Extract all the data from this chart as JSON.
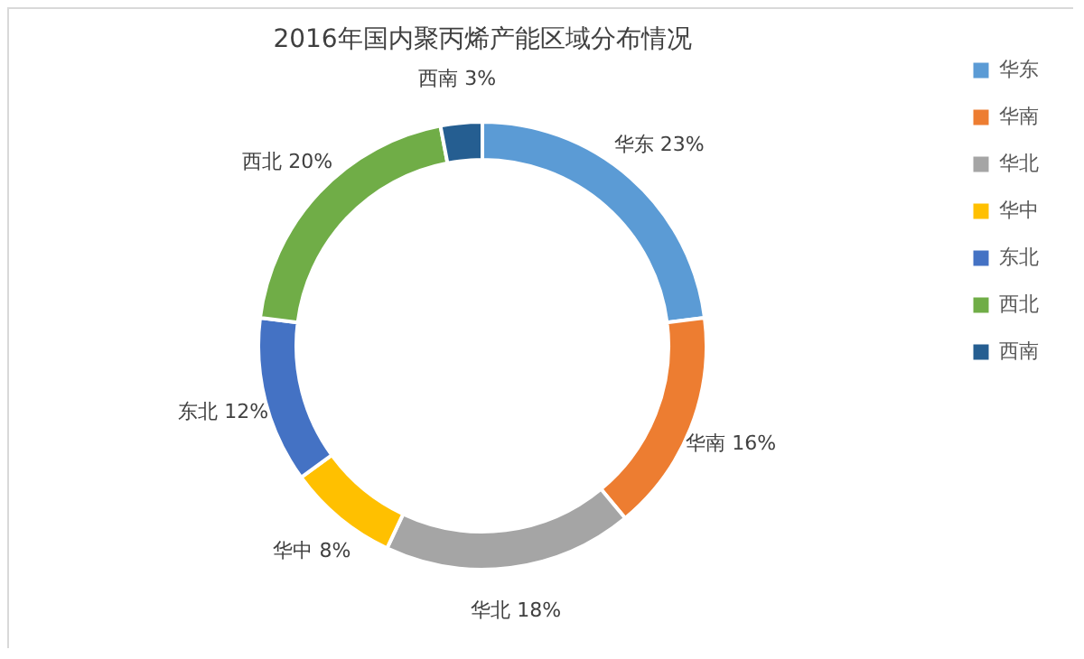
{
  "chart_data": {
    "type": "donut",
    "title": "2016年国内聚丙烯产能区域分布情况",
    "categories": [
      "华东",
      "华南",
      "华北",
      "华中",
      "东北",
      "西北",
      "西南"
    ],
    "values": [
      23,
      16,
      18,
      8,
      12,
      20,
      3
    ],
    "value_labels": [
      "23%",
      "16%",
      "18%",
      "8%",
      "12%",
      "20%",
      "3%"
    ],
    "colors": [
      "#5b9bd5",
      "#ed7d31",
      "#a5a5a5",
      "#ffc000",
      "#4472c4",
      "#70ad47",
      "#255e91"
    ],
    "legend": "right"
  }
}
